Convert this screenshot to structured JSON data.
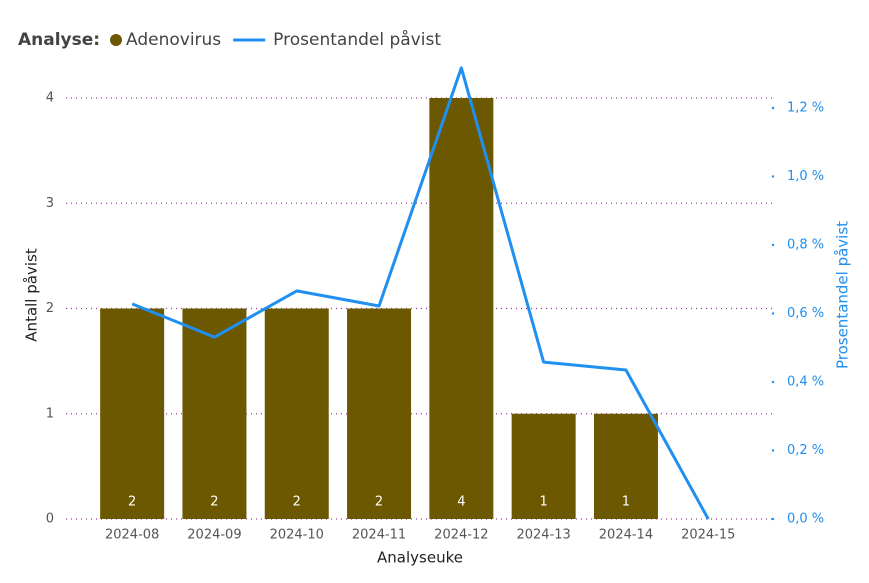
{
  "chart_data": {
    "type": "bar-line",
    "legend_title": "Analyse:",
    "x_label": "Analyseuke",
    "y_label": "Antall påvist",
    "y2_label": "Prosentandel påvist",
    "categories": [
      "2024-08",
      "2024-09",
      "2024-10",
      "2024-11",
      "2024-12",
      "2024-13",
      "2024-14",
      "2024-15"
    ],
    "series": [
      {
        "name": "Adenovirus",
        "type": "bar",
        "color": "#6b5800",
        "values": [
          2,
          2,
          2,
          2,
          4,
          1,
          1,
          null
        ]
      },
      {
        "name": "Prosentandel påvist",
        "type": "line",
        "axis": "y2",
        "color": "#1f8ff0",
        "values": [
          0.628,
          0.531,
          0.666,
          0.622,
          1.317,
          0.458,
          0.435,
          0
        ]
      }
    ],
    "ylim": [
      0,
      4
    ],
    "yticks": [
      0,
      1,
      2,
      3,
      4
    ],
    "y2lim": [
      0,
      1.2
    ],
    "y2ticks": [
      {
        "value": 0,
        "label": "0,0 %"
      },
      {
        "value": 0.2,
        "label": "0,2 %"
      },
      {
        "value": 0.4,
        "label": "0,4 %"
      },
      {
        "value": 0.6,
        "label": "0,6 %"
      },
      {
        "value": 0.8,
        "label": "0,8 %"
      },
      {
        "value": 1.0,
        "label": "1,0 %"
      },
      {
        "value": 1.2,
        "label": "1,2 %"
      }
    ],
    "grid": true
  }
}
